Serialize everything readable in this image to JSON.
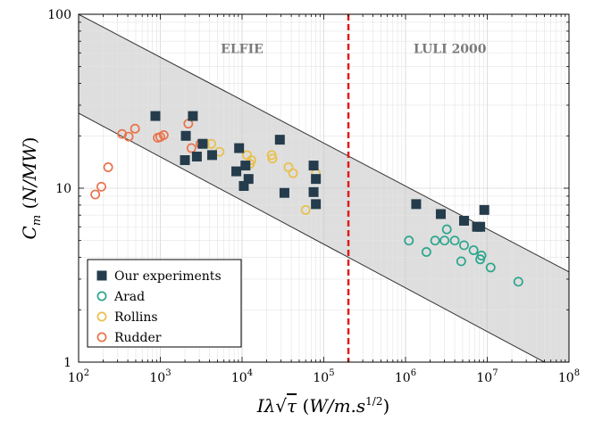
{
  "chart_data": {
    "type": "scatter",
    "xscale": "log",
    "yscale": "log",
    "xlim": [
      100,
      100000000
    ],
    "ylim": [
      1,
      100
    ],
    "x_ticks": [
      {
        "base": "10",
        "exp": "2",
        "value": 100
      },
      {
        "base": "10",
        "exp": "3",
        "value": 1000
      },
      {
        "base": "10",
        "exp": "4",
        "value": 10000
      },
      {
        "base": "10",
        "exp": "5",
        "value": 100000
      },
      {
        "base": "10",
        "exp": "6",
        "value": 1000000
      },
      {
        "base": "10",
        "exp": "7",
        "value": 10000000
      },
      {
        "base": "10",
        "exp": "8",
        "value": 100000000
      }
    ],
    "y_ticks": [
      {
        "label": "1",
        "value": 1
      },
      {
        "label": "10",
        "value": 10
      },
      {
        "label": "100",
        "value": 100
      }
    ],
    "xlabel": "Iλ√τ (W/m.s^1/2)",
    "ylabel": "C_m (N/MW)",
    "grid": "minor",
    "band": {
      "upper": [
        [
          100,
          100
        ],
        [
          100000000,
          3.3
        ]
      ],
      "lower": [
        [
          100,
          27
        ],
        [
          50000000,
          1
        ]
      ],
      "fill": "#dedede"
    },
    "divider": {
      "x": 200000,
      "color": "#e31a1c"
    },
    "region_labels": [
      {
        "text": "ELFIE",
        "x": 10000,
        "y": 60
      },
      {
        "text": "LULI 2000",
        "x": 3500000,
        "y": 60
      }
    ],
    "legend_position": "bottom-left",
    "series": [
      {
        "name": "Our experiments",
        "marker": "square-filled",
        "color": "#253c4c",
        "points": [
          [
            870,
            26
          ],
          [
            2050,
            20
          ],
          [
            2500,
            26
          ],
          [
            3300,
            18
          ],
          [
            2000,
            14.5
          ],
          [
            2800,
            15.2
          ],
          [
            4300,
            15.5
          ],
          [
            9200,
            17
          ],
          [
            8500,
            12.5
          ],
          [
            11000,
            13.5
          ],
          [
            10500,
            10.3
          ],
          [
            12000,
            11.3
          ],
          [
            29000,
            19
          ],
          [
            33000,
            9.4
          ],
          [
            75000,
            13.5
          ],
          [
            75000,
            9.5
          ],
          [
            80000,
            11.3
          ],
          [
            80000,
            8.1
          ],
          [
            1350000,
            8.1
          ],
          [
            2700000,
            7.1
          ],
          [
            5200000,
            6.5
          ],
          [
            7500000,
            6.0
          ],
          [
            8200000,
            6.0
          ],
          [
            9200000,
            7.5
          ]
        ]
      },
      {
        "name": "Arad",
        "marker": "circle-open",
        "color": "#2ca58d",
        "points": [
          [
            1100000,
            5.0
          ],
          [
            1800000,
            4.3
          ],
          [
            2300000,
            5.0
          ],
          [
            3000000,
            5.0
          ],
          [
            3200000,
            5.8
          ],
          [
            4000000,
            5.0
          ],
          [
            4800000,
            3.8
          ],
          [
            5200000,
            4.7
          ],
          [
            6800000,
            4.4
          ],
          [
            8200000,
            3.9
          ],
          [
            8500000,
            4.1
          ],
          [
            11000000,
            3.5
          ],
          [
            24000000,
            2.9
          ]
        ]
      },
      {
        "name": "Rollins",
        "marker": "circle-open",
        "color": "#e8c04a",
        "points": [
          [
            3500,
            18
          ],
          [
            4200,
            18
          ],
          [
            5300,
            16.2
          ],
          [
            11500,
            15.5
          ],
          [
            12500,
            13.8
          ],
          [
            13000,
            14.5
          ],
          [
            23000,
            15.5
          ],
          [
            23500,
            14.8
          ],
          [
            37000,
            13.2
          ],
          [
            42000,
            12.2
          ],
          [
            60000,
            7.5
          ],
          [
            80000,
            12.2
          ]
        ]
      },
      {
        "name": "Rudder",
        "marker": "circle-open",
        "color": "#e8734a",
        "points": [
          [
            160,
            9.2
          ],
          [
            190,
            10.2
          ],
          [
            230,
            13.2
          ],
          [
            340,
            20.5
          ],
          [
            410,
            19.8
          ],
          [
            490,
            22
          ],
          [
            930,
            19.5
          ],
          [
            1000,
            19.7
          ],
          [
            1100,
            20.2
          ],
          [
            2200,
            23.5
          ],
          [
            2400,
            17
          ],
          [
            3100,
            18
          ]
        ]
      }
    ]
  }
}
